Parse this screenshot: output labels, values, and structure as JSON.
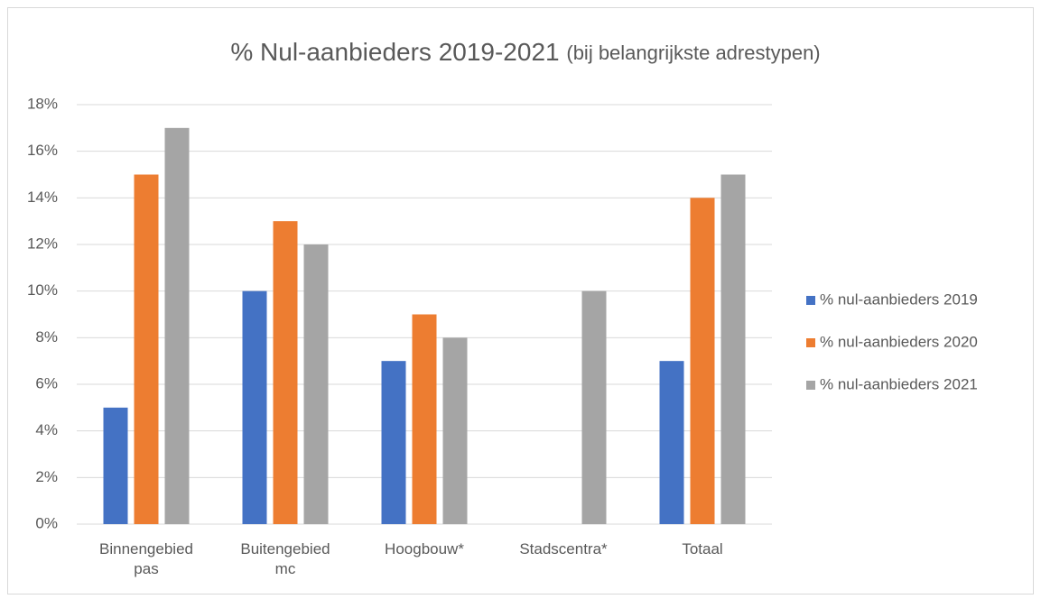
{
  "chart_data": {
    "type": "bar",
    "title": "% Nul-aanbieders 2019-2021",
    "title_note": "(bij belangrijkste adrestypen)",
    "categories": [
      "Binnengebied pas",
      "Buitengebied mc",
      "Hoogbouw*",
      "Stadscentra*",
      "Totaal"
    ],
    "series": [
      {
        "name": "% nul-aanbieders 2019",
        "color": "#4472c4",
        "values": [
          5,
          10,
          7,
          null,
          7
        ]
      },
      {
        "name": "% nul-aanbieders 2020",
        "color": "#ed7d31",
        "values": [
          15,
          13,
          9,
          null,
          14
        ]
      },
      {
        "name": "% nul-aanbieders 2021",
        "color": "#a5a5a5",
        "values": [
          17,
          12,
          8,
          10,
          15
        ]
      }
    ],
    "ylim": [
      0,
      18
    ],
    "yticks": [
      {
        "value": 0,
        "label": "0%"
      },
      {
        "value": 2,
        "label": "2%"
      },
      {
        "value": 4,
        "label": "4%"
      },
      {
        "value": 6,
        "label": "6%"
      },
      {
        "value": 8,
        "label": "8%"
      },
      {
        "value": 10,
        "label": "10%"
      },
      {
        "value": 12,
        "label": "12%"
      },
      {
        "value": 14,
        "label": "14%"
      },
      {
        "value": 16,
        "label": "16%"
      },
      {
        "value": 18,
        "label": "18%"
      }
    ],
    "grid": true,
    "legend": "right"
  }
}
